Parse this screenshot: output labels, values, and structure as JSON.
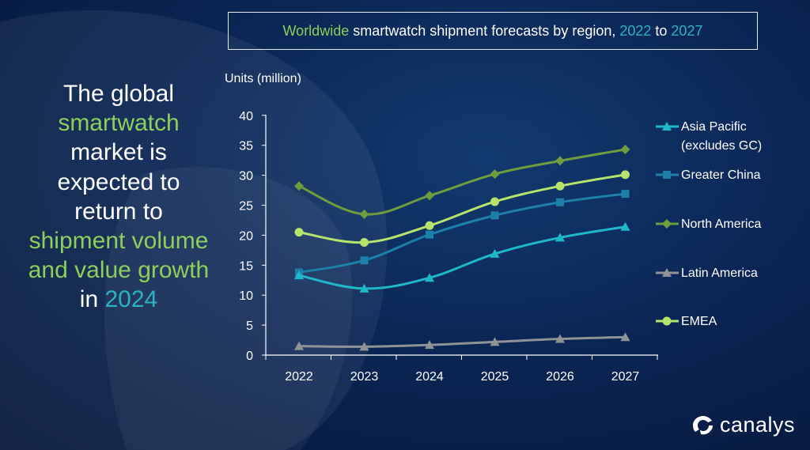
{
  "headline": {
    "parts": [
      {
        "text": "The global ",
        "style": "white"
      },
      {
        "text": "smartwatch",
        "style": "green"
      },
      {
        "text": " market is expected to return to ",
        "style": "white"
      },
      {
        "text": "shipment volume and value growth",
        "style": "green"
      },
      {
        "text": " in ",
        "style": "white"
      },
      {
        "text": "2024",
        "style": "teal"
      }
    ]
  },
  "title": {
    "part1": "Worldwide",
    "part2": " smartwatch shipment forecasts by region, ",
    "part3": "2022",
    "part4": " to ",
    "part5": "2027"
  },
  "logo": {
    "text": "canalys",
    "icon": "canalys-logo-icon"
  },
  "colors": {
    "green_text": "#8ccf5b",
    "teal_text": "#2bb3c4"
  },
  "chart_data": {
    "type": "line",
    "title": "Worldwide smartwatch shipment forecasts by region, 2022 to 2027",
    "ylabel": "Units (million)",
    "xlabel": "",
    "x": [
      "2022",
      "2023",
      "2024",
      "2025",
      "2026",
      "2027"
    ],
    "ylim": [
      0,
      40
    ],
    "yticks": [
      0,
      5,
      10,
      15,
      20,
      25,
      30,
      35,
      40
    ],
    "grid": false,
    "legend_position": "right",
    "series": [
      {
        "name": "Asia Pacific\n(excludes GC)",
        "color": "#1fb8c9",
        "marker": "triangle",
        "values": [
          13.3,
          11.1,
          12.9,
          16.9,
          19.6,
          21.4
        ]
      },
      {
        "name": "Greater China",
        "color": "#1e7fa8",
        "marker": "square",
        "values": [
          13.8,
          15.8,
          20.1,
          23.3,
          25.5,
          26.9
        ]
      },
      {
        "name": "North America",
        "color": "#6f9c3e",
        "marker": "diamond",
        "values": [
          28.2,
          23.5,
          26.6,
          30.2,
          32.4,
          34.3
        ]
      },
      {
        "name": "Latin America",
        "color": "#8f9397",
        "marker": "triangle",
        "values": [
          1.5,
          1.4,
          1.7,
          2.2,
          2.7,
          3.0
        ]
      },
      {
        "name": "EMEA",
        "color": "#b6e36d",
        "marker": "circle",
        "values": [
          20.5,
          18.8,
          21.6,
          25.6,
          28.2,
          30.1
        ]
      }
    ]
  }
}
